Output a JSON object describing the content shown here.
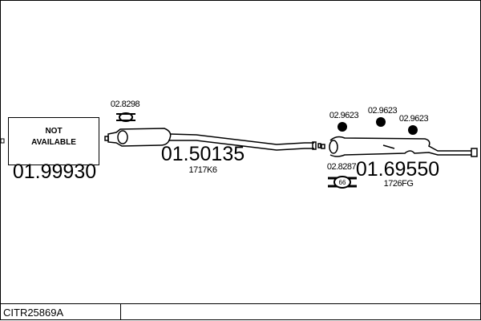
{
  "diagram_code": "CITR25869A",
  "parts": [
    {
      "part_number": "01.99930",
      "status_text": [
        "NOT",
        "AVAILABLE"
      ]
    },
    {
      "part_number": "01.50135",
      "ref": "1717K6",
      "clamp": "02.8298"
    },
    {
      "part_number": "01.69550",
      "ref": "1726FG",
      "clamp": "02.8287",
      "clamp_mark": "66",
      "rubber_mounts": [
        "02.9623",
        "02.9623",
        "02.9623"
      ]
    }
  ]
}
